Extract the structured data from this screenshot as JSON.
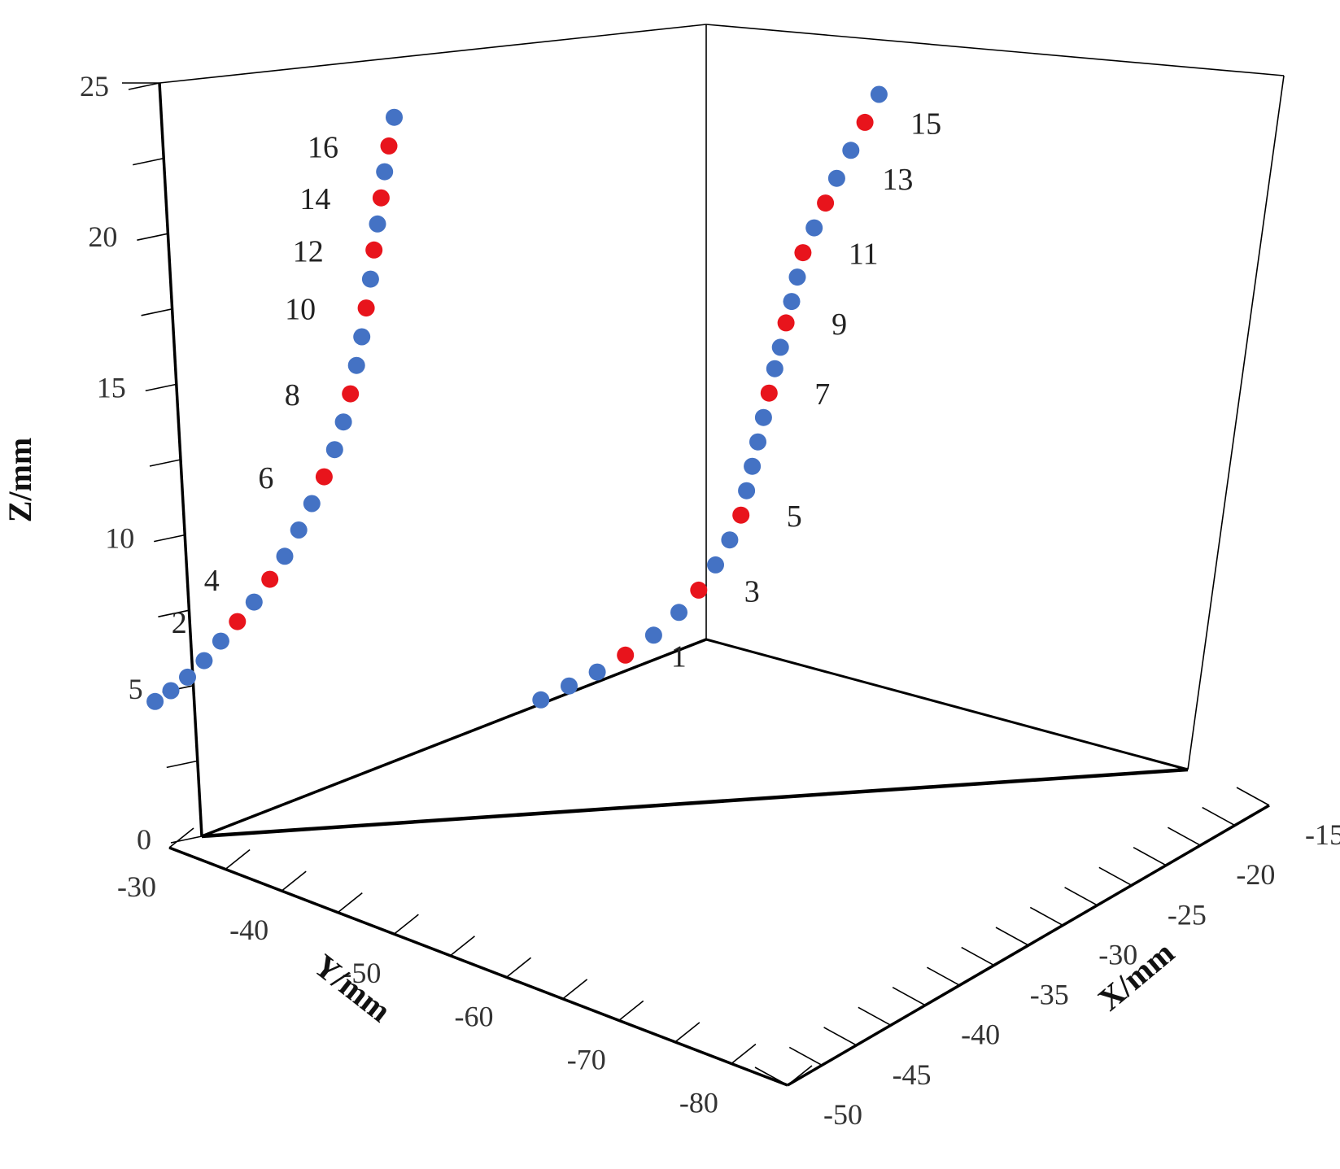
{
  "chart_data": {
    "type": "scatter",
    "projection": "3d",
    "xlabel": "X/mm",
    "ylabel": "Y/mm",
    "zlabel": "Z/mm",
    "x_ticks": [
      "-15",
      "-20",
      "-25",
      "-30",
      "-35",
      "-40",
      "-45",
      "-50"
    ],
    "y_ticks": [
      "-30",
      "-40",
      "-50",
      "-60",
      "-70",
      "-80"
    ],
    "z_ticks": [
      "0",
      "5",
      "10",
      "15",
      "20",
      "25"
    ],
    "xlim": [
      -50,
      -15
    ],
    "ylim": [
      -85,
      -30
    ],
    "zlim": [
      0,
      25
    ],
    "colors": {
      "marker": "#e8141c",
      "interpolated": "#4472c4"
    },
    "series": [
      {
        "points": [
          {
            "x": -40.0,
            "y": -40.2,
            "z": 22.5,
            "k": "b"
          },
          {
            "x": -40.0,
            "y": -40.8,
            "z": 21.5,
            "k": "r",
            "label": "16"
          },
          {
            "x": -40.0,
            "y": -41.3,
            "z": 20.6,
            "k": "b"
          },
          {
            "x": -40.0,
            "y": -41.7,
            "z": 19.7,
            "k": "r",
            "label": "14"
          },
          {
            "x": -40.0,
            "y": -42.1,
            "z": 18.8,
            "k": "b"
          },
          {
            "x": -40.0,
            "y": -42.5,
            "z": 17.9,
            "k": "r",
            "label": "12"
          },
          {
            "x": -40.0,
            "y": -42.9,
            "z": 16.9,
            "k": "b"
          },
          {
            "x": -40.0,
            "y": -43.4,
            "z": 15.9,
            "k": "r",
            "label": "10"
          },
          {
            "x": -40.0,
            "y": -43.9,
            "z": 14.9,
            "k": "b"
          },
          {
            "x": -40.0,
            "y": -44.5,
            "z": 13.9,
            "k": "b"
          },
          {
            "x": -40.0,
            "y": -45.2,
            "z": 12.9,
            "k": "r",
            "label": "8"
          },
          {
            "x": -40.0,
            "y": -46.0,
            "z": 11.9,
            "k": "b"
          },
          {
            "x": -40.0,
            "y": -47.0,
            "z": 10.9,
            "k": "b"
          },
          {
            "x": -40.0,
            "y": -48.2,
            "z": 9.9,
            "k": "r",
            "label": "6"
          },
          {
            "x": -40.0,
            "y": -49.6,
            "z": 8.9,
            "k": "b"
          },
          {
            "x": -40.0,
            "y": -51.1,
            "z": 7.9,
            "k": "b"
          },
          {
            "x": -40.0,
            "y": -52.7,
            "z": 6.9,
            "k": "b"
          },
          {
            "x": -40.0,
            "y": -54.4,
            "z": 6.0,
            "k": "r",
            "label": "4"
          },
          {
            "x": -40.0,
            "y": -56.2,
            "z": 5.1,
            "k": "b"
          },
          {
            "x": -40.0,
            "y": -58.1,
            "z": 4.3,
            "k": "r",
            "label": "2"
          },
          {
            "x": -40.0,
            "y": -60.0,
            "z": 3.5,
            "k": "b"
          },
          {
            "x": -40.0,
            "y": -61.9,
            "z": 2.7,
            "k": "b"
          },
          {
            "x": -40.0,
            "y": -63.8,
            "z": 2.0,
            "k": "b"
          },
          {
            "x": -40.0,
            "y": -65.7,
            "z": 1.4,
            "k": "b"
          },
          {
            "x": -40.0,
            "y": -67.5,
            "z": 0.9,
            "k": "b"
          }
        ]
      },
      {
        "points": [
          {
            "x": -21.3,
            "y": -45.0,
            "z": 21.7,
            "k": "b"
          },
          {
            "x": -21.8,
            "y": -45.0,
            "z": 20.8,
            "k": "r",
            "label": "15"
          },
          {
            "x": -22.3,
            "y": -45.0,
            "z": 19.9,
            "k": "b"
          },
          {
            "x": -22.8,
            "y": -45.0,
            "z": 19.0,
            "k": "b",
            "label": "13"
          },
          {
            "x": -23.2,
            "y": -45.0,
            "z": 18.2,
            "k": "r"
          },
          {
            "x": -23.6,
            "y": -45.0,
            "z": 17.4,
            "k": "b"
          },
          {
            "x": -24.0,
            "y": -45.0,
            "z": 16.6,
            "k": "r",
            "label": "11"
          },
          {
            "x": -24.2,
            "y": -45.0,
            "z": 15.8,
            "k": "b"
          },
          {
            "x": -24.4,
            "y": -45.0,
            "z": 15.0,
            "k": "b"
          },
          {
            "x": -24.6,
            "y": -45.0,
            "z": 14.3,
            "k": "r",
            "label": "9"
          },
          {
            "x": -24.8,
            "y": -45.0,
            "z": 13.5,
            "k": "b"
          },
          {
            "x": -25.0,
            "y": -45.0,
            "z": 12.8,
            "k": "b"
          },
          {
            "x": -25.2,
            "y": -45.0,
            "z": 12.0,
            "k": "r",
            "label": "7"
          },
          {
            "x": -25.4,
            "y": -45.0,
            "z": 11.2,
            "k": "b"
          },
          {
            "x": -25.6,
            "y": -45.0,
            "z": 10.4,
            "k": "b"
          },
          {
            "x": -25.8,
            "y": -45.0,
            "z": 9.6,
            "k": "b"
          },
          {
            "x": -26.0,
            "y": -45.0,
            "z": 8.8,
            "k": "b"
          },
          {
            "x": -26.2,
            "y": -45.0,
            "z": 8.0,
            "k": "r",
            "label": "5"
          },
          {
            "x": -26.6,
            "y": -45.0,
            "z": 7.2,
            "k": "b"
          },
          {
            "x": -27.1,
            "y": -45.0,
            "z": 6.4,
            "k": "b"
          },
          {
            "x": -27.7,
            "y": -45.0,
            "z": 5.6,
            "k": "r",
            "label": "3"
          },
          {
            "x": -28.4,
            "y": -45.0,
            "z": 4.9,
            "k": "b"
          },
          {
            "x": -29.3,
            "y": -45.0,
            "z": 4.2,
            "k": "b"
          },
          {
            "x": -30.3,
            "y": -45.0,
            "z": 3.6,
            "k": "r",
            "label": "1"
          },
          {
            "x": -31.3,
            "y": -45.0,
            "z": 3.1,
            "k": "b"
          },
          {
            "x": -32.3,
            "y": -45.0,
            "z": 2.7,
            "k": "b"
          },
          {
            "x": -33.3,
            "y": -45.0,
            "z": 2.3,
            "k": "b"
          }
        ]
      }
    ]
  }
}
